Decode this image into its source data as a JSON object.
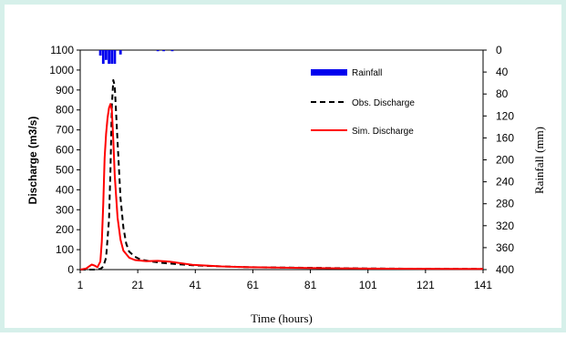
{
  "chart_data": {
    "type": "line",
    "xlabel": "Time (hours)",
    "ylabel": "Discharge (m3/s)",
    "y2label": "Rainfall (mm)",
    "x_ticks": [
      "1",
      "21",
      "41",
      "61",
      "81",
      "101",
      "121",
      "141"
    ],
    "y_ticks": [
      "0",
      "100",
      "200",
      "300",
      "400",
      "500",
      "600",
      "700",
      "800",
      "900",
      "1000",
      "1100"
    ],
    "y2_ticks": [
      "0",
      "40",
      "80",
      "120",
      "160",
      "200",
      "240",
      "280",
      "320",
      "360",
      "400"
    ],
    "xlim": [
      1,
      141
    ],
    "ylim": [
      0,
      1100
    ],
    "y2lim": [
      0,
      400
    ],
    "y2_inverted": true,
    "grid": false,
    "legend_position": "top-right",
    "rainfall": {
      "name": "Rainfall",
      "color": "#0000ee",
      "x": [
        8,
        9,
        10,
        11,
        12,
        13,
        15,
        28,
        30,
        33
      ],
      "values": [
        10,
        25,
        18,
        25,
        25,
        25,
        8,
        2,
        2,
        2
      ]
    },
    "series": [
      {
        "name": "Obs. Discharge",
        "color": "#000000",
        "dash": true,
        "x": [
          1,
          6,
          8,
          9,
          10,
          11,
          11.5,
          12,
          12.5,
          13,
          14,
          15,
          16,
          17,
          18,
          20,
          22,
          26,
          30,
          35,
          40,
          50,
          60,
          80,
          100,
          120,
          141
        ],
        "y": [
          0,
          0,
          3,
          15,
          60,
          250,
          500,
          820,
          950,
          920,
          640,
          360,
          210,
          130,
          90,
          65,
          50,
          40,
          33,
          27,
          22,
          16,
          12,
          9,
          6,
          4,
          3
        ]
      },
      {
        "name": "Sim. Discharge",
        "color": "#ff0000",
        "dash": false,
        "x": [
          1,
          3,
          5,
          6,
          7,
          8,
          8.5,
          9,
          9.5,
          10,
          10.5,
          11,
          11.5,
          12,
          12.5,
          13,
          14,
          15,
          16,
          18,
          20,
          24,
          28,
          32,
          36,
          40,
          50,
          60,
          80,
          100,
          120,
          141
        ],
        "y": [
          0,
          5,
          25,
          20,
          12,
          40,
          140,
          330,
          560,
          680,
          760,
          810,
          830,
          800,
          650,
          470,
          260,
          150,
          95,
          60,
          48,
          42,
          44,
          40,
          32,
          24,
          16,
          12,
          8,
          5,
          4,
          3
        ]
      }
    ]
  }
}
